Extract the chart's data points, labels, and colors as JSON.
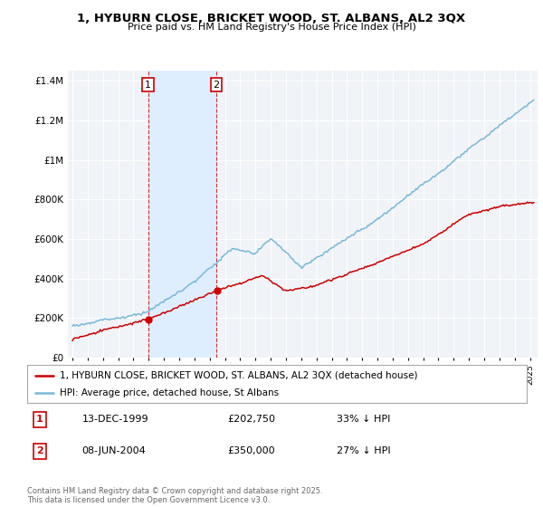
{
  "title": "1, HYBURN CLOSE, BRICKET WOOD, ST. ALBANS, AL2 3QX",
  "subtitle": "Price paid vs. HM Land Registry's House Price Index (HPI)",
  "legend_label_red": "1, HYBURN CLOSE, BRICKET WOOD, ST. ALBANS, AL2 3QX (detached house)",
  "legend_label_blue": "HPI: Average price, detached house, St Albans",
  "sale1_date": "13-DEC-1999",
  "sale1_price": "£202,750",
  "sale1_hpi": "33% ↓ HPI",
  "sale1_year": 1999.96,
  "sale1_value": 202750,
  "sale2_date": "08-JUN-2004",
  "sale2_price": "£350,000",
  "sale2_hpi": "27% ↓ HPI",
  "sale2_year": 2004.44,
  "sale2_value": 350000,
  "red_color": "#cc0000",
  "blue_color": "#7ab8d8",
  "shading_color": "#deeeff",
  "background_color": "#f0f4f8",
  "footer": "Contains HM Land Registry data © Crown copyright and database right 2025.\nThis data is licensed under the Open Government Licence v3.0."
}
